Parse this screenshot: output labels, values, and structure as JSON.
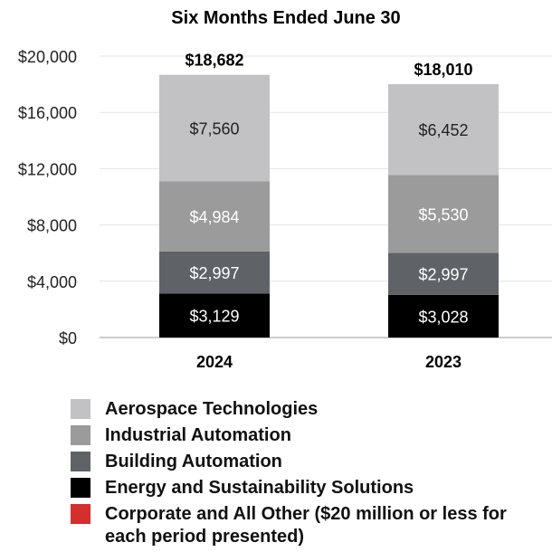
{
  "chart_data": {
    "type": "bar",
    "stacked": true,
    "title": "Six Months Ended June 30",
    "categories": [
      "2024",
      "2023"
    ],
    "totals": [
      18682,
      18010
    ],
    "total_labels": [
      "$18,682",
      "$18,010"
    ],
    "ylim": [
      0,
      20000
    ],
    "yticks": [
      0,
      4000,
      8000,
      12000,
      16000,
      20000
    ],
    "ytick_labels": [
      "$0",
      "$4,000",
      "$8,000",
      "$12,000",
      "$16,000",
      "$20,000"
    ],
    "grid": true,
    "legend_position": "bottom",
    "series": [
      {
        "name": "Energy and Sustainability Solutions",
        "color": "#000000",
        "values": [
          3129,
          3028
        ],
        "labels": [
          "$3,129",
          "$3,028"
        ]
      },
      {
        "name": "Building Automation",
        "color": "#5f6368",
        "values": [
          2997,
          2997
        ],
        "labels": [
          "$2,997",
          "$2,997"
        ]
      },
      {
        "name": "Industrial Automation",
        "color": "#9b9b9b",
        "values": [
          4984,
          5530
        ],
        "labels": [
          "$4,984",
          "$5,530"
        ]
      },
      {
        "name": "Aerospace Technologies",
        "color": "#c2c2c4",
        "values": [
          7560,
          6452
        ],
        "labels": [
          "$7,560",
          "$6,452"
        ]
      },
      {
        "name": "Corporate and All Other ($20 million or less for each period presented)",
        "color": "#d32f2f",
        "values": [
          null,
          null
        ],
        "labels": [
          "",
          ""
        ]
      }
    ]
  },
  "legend": [
    {
      "label": "Aerospace Technologies",
      "color": "#c2c2c4"
    },
    {
      "label": "Industrial Automation",
      "color": "#9b9b9b"
    },
    {
      "label": "Building Automation",
      "color": "#5f6368"
    },
    {
      "label": "Energy and Sustainability Solutions",
      "color": "#000000"
    },
    {
      "label": "Corporate and All Other ($20 million or less for each period presented)",
      "color": "#d32f2f"
    }
  ]
}
